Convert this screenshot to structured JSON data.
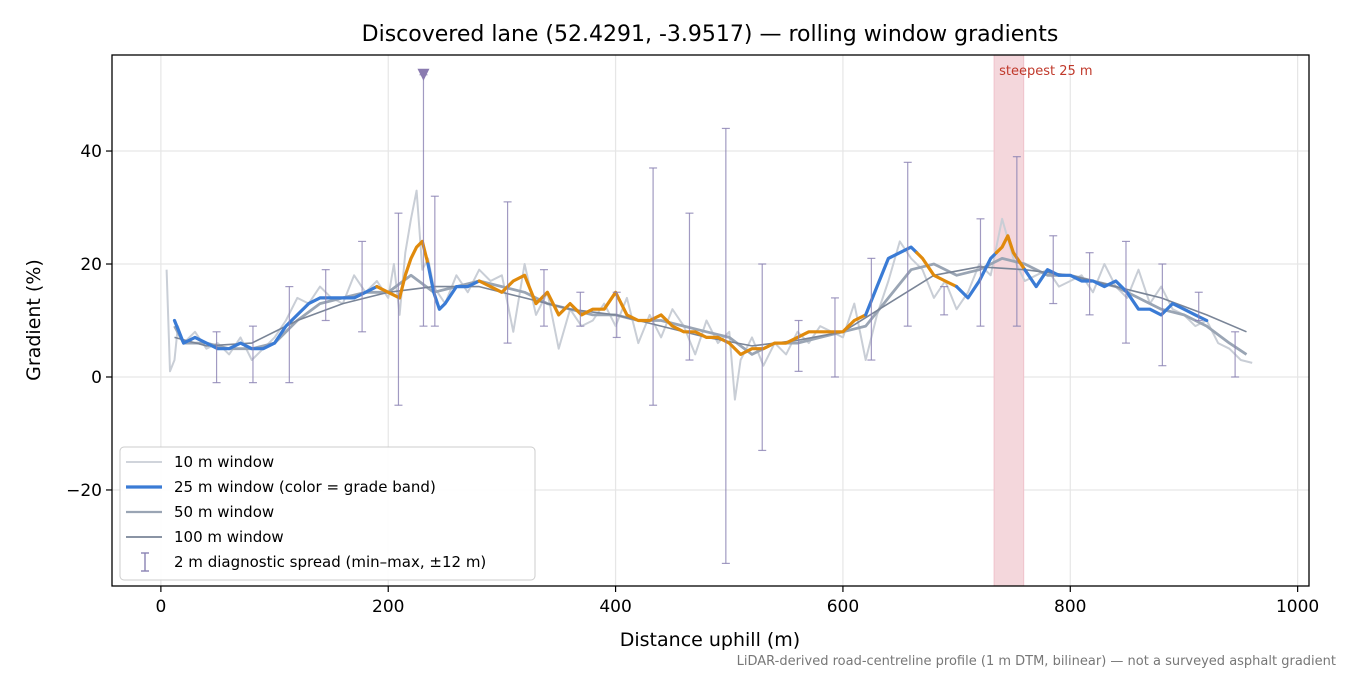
{
  "chart_data": {
    "type": "line",
    "title": "Discovered lane (52.4291, -3.9517) — rolling window gradients",
    "xlabel": "Distance uphill (m)",
    "ylabel": "Gradient (%)",
    "xlim": [
      -43,
      1010
    ],
    "ylim": [
      -37,
      57
    ],
    "x_ticks": [
      0,
      200,
      400,
      600,
      800,
      1000
    ],
    "y_ticks": [
      -20,
      0,
      20,
      40
    ],
    "grid": true,
    "legend_position": "lower-left",
    "footnote": "LiDAR-derived road-centreline profile (1 m DTM, bilinear) — not a surveyed asphalt gradient",
    "steepest_band": {
      "label": "steepest 25 m",
      "x_start": 733,
      "x_end": 759,
      "color": "#f4d7dc"
    },
    "marker": {
      "x": 231,
      "y": 53.5,
      "color": "#8a7bb0"
    },
    "legend": [
      {
        "label": "10 m window",
        "color": "#c9ced6",
        "style": "line10"
      },
      {
        "label": "25 m window (color = grade band)",
        "color": "#3a7bd5",
        "style": "line25"
      },
      {
        "label": "50 m window",
        "color": "#9aa5b4",
        "style": "line50"
      },
      {
        "label": "100 m window",
        "color": "#7a8597",
        "style": "line100"
      },
      {
        "label": "2 m diagnostic spread (min–max, ±12 m)",
        "color": "#8a82b3",
        "style": "errbar"
      }
    ],
    "colors": {
      "band_low": "#3a7bd5",
      "band_high": "#e08a0c",
      "error_bars": "#8a82b3"
    },
    "series": [
      {
        "name": "10 m window",
        "x": [
          5,
          8,
          12,
          15,
          20,
          30,
          40,
          50,
          60,
          70,
          80,
          90,
          100,
          110,
          120,
          130,
          140,
          150,
          160,
          170,
          180,
          190,
          200,
          205,
          210,
          215,
          220,
          225,
          230,
          235,
          240,
          250,
          260,
          270,
          280,
          290,
          300,
          310,
          320,
          330,
          340,
          350,
          360,
          370,
          380,
          390,
          400,
          410,
          420,
          430,
          440,
          450,
          460,
          470,
          480,
          490,
          500,
          505,
          510,
          520,
          530,
          540,
          550,
          560,
          570,
          580,
          590,
          600,
          610,
          620,
          630,
          640,
          650,
          660,
          670,
          680,
          690,
          700,
          710,
          720,
          730,
          740,
          750,
          760,
          770,
          780,
          790,
          800,
          810,
          820,
          830,
          840,
          850,
          860,
          870,
          880,
          890,
          900,
          910,
          920,
          930,
          940,
          950,
          960
        ],
        "y": [
          19,
          1,
          3,
          9,
          6,
          8,
          5,
          6,
          4,
          7,
          3,
          5,
          7,
          10,
          14,
          13,
          16,
          14,
          13,
          18,
          15,
          17,
          14,
          20,
          11,
          22,
          28,
          33,
          19,
          21,
          16,
          13,
          18,
          15,
          19,
          17,
          18,
          8,
          20,
          11,
          15,
          5,
          12,
          9,
          10,
          13,
          9,
          14,
          6,
          11,
          7,
          12,
          9,
          4,
          10,
          6,
          8,
          -4,
          3,
          7,
          2,
          6,
          4,
          8,
          6,
          9,
          8,
          7,
          13,
          3,
          11,
          17,
          24,
          21,
          19,
          14,
          17,
          12,
          15,
          20,
          18,
          28,
          21,
          17,
          18,
          19,
          16,
          17,
          18,
          15,
          20,
          16,
          14,
          19,
          13,
          16,
          12,
          11,
          9,
          10,
          6,
          5,
          3,
          2.5
        ]
      },
      {
        "name": "25 m window (color = grade band)",
        "x": [
          12,
          20,
          30,
          40,
          50,
          60,
          70,
          80,
          90,
          100,
          110,
          120,
          130,
          140,
          150,
          160,
          170,
          180,
          190,
          200,
          210,
          215,
          220,
          225,
          230,
          235,
          240,
          245,
          250,
          260,
          270,
          280,
          290,
          300,
          310,
          320,
          330,
          340,
          350,
          360,
          370,
          380,
          390,
          400,
          410,
          420,
          430,
          440,
          450,
          460,
          470,
          480,
          490,
          500,
          510,
          520,
          530,
          540,
          550,
          560,
          570,
          580,
          590,
          600,
          610,
          620,
          630,
          640,
          650,
          660,
          670,
          680,
          690,
          700,
          710,
          720,
          730,
          740,
          745,
          750,
          760,
          770,
          780,
          790,
          800,
          810,
          820,
          830,
          840,
          850,
          860,
          870,
          880,
          890,
          900,
          910,
          920
        ],
        "y": [
          10,
          6,
          7,
          6,
          5,
          5,
          6,
          5,
          5,
          6,
          9,
          11,
          13,
          14,
          14,
          14,
          14,
          15,
          16,
          15,
          14,
          18,
          21,
          23,
          24,
          20,
          15,
          12,
          13,
          16,
          16,
          17,
          16,
          15,
          17,
          18,
          13,
          15,
          11,
          13,
          11,
          12,
          12,
          15,
          11,
          10,
          10,
          11,
          9,
          8,
          8,
          7,
          7,
          6,
          4,
          5,
          5,
          6,
          6,
          7,
          8,
          8,
          8,
          8,
          10,
          11,
          16,
          21,
          22,
          23,
          21,
          18,
          17,
          16,
          14,
          17,
          21,
          23,
          25,
          22,
          19,
          16,
          19,
          18,
          18,
          17,
          17,
          16,
          17,
          15,
          12,
          12,
          11,
          13,
          12,
          11,
          10
        ],
        "bands": [
          "low",
          "high",
          "low",
          "high",
          "low",
          "high",
          "low",
          "high",
          "low"
        ]
      },
      {
        "name": "50 m window",
        "x": [
          12,
          20,
          40,
          60,
          80,
          100,
          120,
          140,
          160,
          180,
          200,
          220,
          240,
          260,
          280,
          300,
          320,
          340,
          360,
          380,
          400,
          420,
          440,
          460,
          480,
          500,
          520,
          540,
          560,
          580,
          600,
          620,
          640,
          660,
          680,
          700,
          720,
          740,
          760,
          780,
          800,
          820,
          840,
          860,
          880,
          900,
          920,
          940,
          955
        ],
        "y": [
          9,
          6,
          6,
          5,
          5,
          6,
          10,
          13,
          14,
          15,
          15,
          18,
          15,
          16,
          17,
          16,
          15,
          13,
          12,
          11,
          11,
          10,
          10,
          9,
          8,
          7,
          4,
          6,
          6,
          7,
          8,
          9,
          14,
          19,
          20,
          18,
          19,
          21,
          20,
          18,
          18,
          17,
          16,
          14,
          12,
          11,
          9,
          6,
          4
        ]
      },
      {
        "name": "100 m window",
        "x": [
          12,
          40,
          80,
          120,
          160,
          200,
          240,
          280,
          320,
          360,
          400,
          440,
          480,
          520,
          560,
          600,
          640,
          680,
          720,
          760,
          800,
          840,
          880,
          920,
          955
        ],
        "y": [
          7,
          5.5,
          6,
          10,
          13,
          15,
          16,
          16,
          14,
          12,
          11,
          9,
          7,
          5.5,
          6.5,
          8,
          13,
          18,
          19.5,
          19,
          18,
          16,
          14,
          11,
          8
        ]
      }
    ],
    "error_bars": [
      {
        "x": 49,
        "lo": -1,
        "hi": 8
      },
      {
        "x": 81,
        "lo": -1,
        "hi": 9
      },
      {
        "x": 113,
        "lo": -1,
        "hi": 16
      },
      {
        "x": 145,
        "lo": 10,
        "hi": 19
      },
      {
        "x": 177,
        "lo": 8,
        "hi": 24
      },
      {
        "x": 209,
        "lo": -5,
        "hi": 29
      },
      {
        "x": 231,
        "lo": 9,
        "hi": 53.5
      },
      {
        "x": 241,
        "lo": 9,
        "hi": 32
      },
      {
        "x": 305,
        "lo": 6,
        "hi": 31
      },
      {
        "x": 337,
        "lo": 9,
        "hi": 19
      },
      {
        "x": 369,
        "lo": 9,
        "hi": 15
      },
      {
        "x": 401,
        "lo": 7,
        "hi": 15
      },
      {
        "x": 433,
        "lo": -5,
        "hi": 37
      },
      {
        "x": 465,
        "lo": 3,
        "hi": 29
      },
      {
        "x": 497,
        "lo": -33,
        "hi": 44
      },
      {
        "x": 529,
        "lo": -13,
        "hi": 20
      },
      {
        "x": 561,
        "lo": 1,
        "hi": 10
      },
      {
        "x": 593,
        "lo": 0,
        "hi": 14
      },
      {
        "x": 625,
        "lo": 3,
        "hi": 21
      },
      {
        "x": 657,
        "lo": 9,
        "hi": 38
      },
      {
        "x": 689,
        "lo": 11,
        "hi": 16
      },
      {
        "x": 721,
        "lo": 9,
        "hi": 28
      },
      {
        "x": 753,
        "lo": 9,
        "hi": 39
      },
      {
        "x": 785,
        "lo": 13,
        "hi": 25
      },
      {
        "x": 817,
        "lo": 11,
        "hi": 22
      },
      {
        "x": 849,
        "lo": 6,
        "hi": 24
      },
      {
        "x": 881,
        "lo": 2,
        "hi": 20
      },
      {
        "x": 913,
        "lo": 10,
        "hi": 15
      },
      {
        "x": 945,
        "lo": 0,
        "hi": 8
      }
    ]
  }
}
